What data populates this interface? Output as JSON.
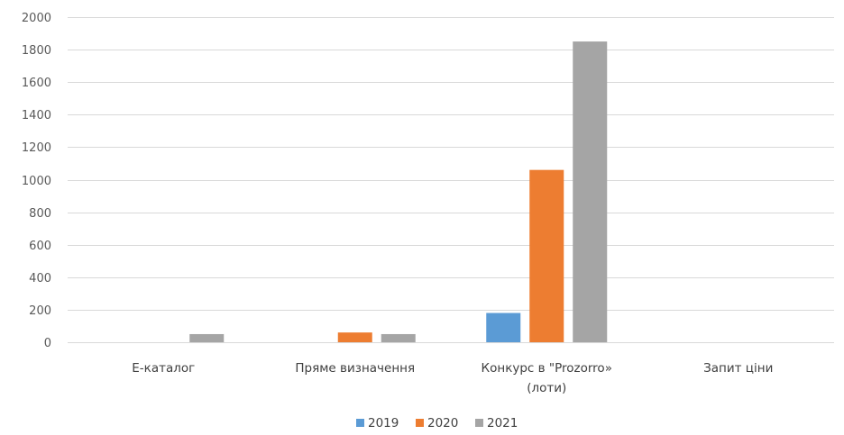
{
  "chart_data": {
    "type": "bar",
    "categories": [
      "Е-каталог",
      "Пряме визначення",
      "Конкурс в \"Prozorro» (лоти)",
      "Запит ціни"
    ],
    "category_lines": [
      [
        "Е-каталог"
      ],
      [
        "Пряме визначення"
      ],
      [
        "Конкурс в \"Prozorro»",
        "(лоти)"
      ],
      [
        "Запит ціни"
      ]
    ],
    "series": [
      {
        "name": "2019",
        "color": "#5b9bd5",
        "values": [
          0,
          0,
          180,
          0
        ]
      },
      {
        "name": "2020",
        "color": "#ed7d31",
        "values": [
          0,
          60,
          1060,
          0
        ]
      },
      {
        "name": "2021",
        "color": "#a5a5a5",
        "values": [
          50,
          50,
          1850,
          0
        ]
      }
    ],
    "ylim": [
      0,
      2000
    ],
    "yticks": [
      0,
      200,
      400,
      600,
      800,
      1000,
      1200,
      1400,
      1600,
      1800,
      2000
    ],
    "grid": true,
    "legend": "bottom"
  }
}
